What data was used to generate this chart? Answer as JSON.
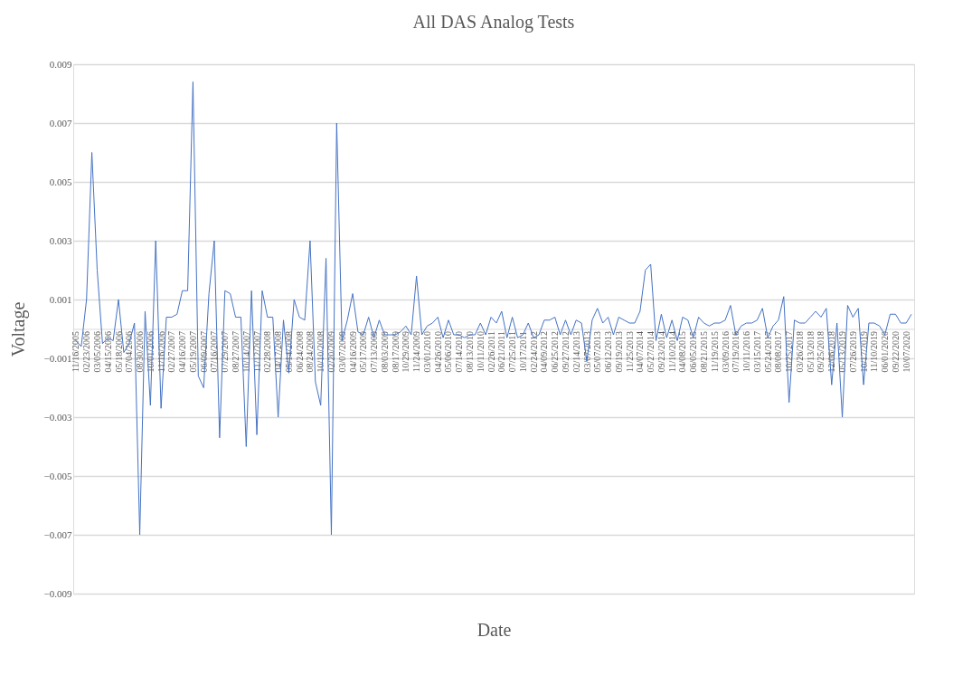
{
  "chart_data": {
    "type": "line",
    "title": "All DAS Analog Tests",
    "xlabel": "Date",
    "ylabel": "Voltage",
    "categories": [
      "11/16/2005",
      null,
      "02/23/2006",
      null,
      "03/05/2006",
      null,
      "04/15/2006",
      null,
      "05/18/2006",
      null,
      "07/04/2006",
      null,
      "08/30/2006",
      null,
      "10/01/2006",
      null,
      "11/16/2006",
      null,
      "02/27/2007",
      null,
      "04/16/2007",
      null,
      "05/19/2007",
      null,
      "06/09/2007",
      null,
      "07/16/2007",
      null,
      "07/29/2007",
      null,
      "08/27/2007",
      null,
      "10/14/2007",
      null,
      "11/12/2007",
      null,
      "02/28/2008",
      null,
      "04/17/2008",
      null,
      "05/14/2008",
      null,
      "06/24/2008",
      null,
      "08/24/2008",
      null,
      "10/10/2008",
      null,
      "02/20/2009",
      null,
      "03/07/2009",
      null,
      "04/16/2009",
      null,
      "05/17/2009",
      null,
      "07/13/2009",
      null,
      "08/03/2009",
      null,
      "08/17/2009",
      null,
      "10/29/2009",
      null,
      "11/24/2009",
      null,
      "03/01/2010",
      null,
      "04/26/2010",
      null,
      "05/06/2010",
      null,
      "07/14/2010",
      null,
      "08/13/2010",
      null,
      "10/11/2010",
      null,
      "02/26/2011",
      null,
      "06/21/2011",
      null,
      "07/25/2011",
      null,
      "10/17/2011",
      null,
      "02/24/2012",
      null,
      "04/09/2012",
      null,
      "06/25/2012",
      null,
      "09/27/2012",
      null,
      "02/14/2013",
      null,
      "03/07/2013",
      null,
      "05/07/2013",
      null,
      "06/12/2013",
      null,
      "09/19/2013",
      null,
      "11/25/2013",
      null,
      "04/07/2014",
      null,
      "05/27/2014",
      null,
      "09/23/2014",
      null,
      "11/10/2014",
      null,
      "04/08/2015",
      null,
      "06/05/2015",
      null,
      "08/21/2015",
      null,
      "11/19/2015",
      null,
      "03/09/2016",
      null,
      "07/19/2016",
      null,
      "10/11/2016",
      null,
      "03/15/2017",
      null,
      "05/24/2017",
      null,
      "08/08/2017",
      null,
      "10/25/2017",
      null,
      "03/26/2018",
      null,
      "05/13/2018",
      null,
      "09/25/2018",
      null,
      "12/06/2018",
      null,
      "05/13/2019",
      null,
      "07/26/2019",
      null,
      "10/17/2019",
      null,
      "11/10/2019",
      null,
      "06/01/2020",
      null,
      "09/22/2020",
      null,
      "10/07/2020",
      null
    ],
    "series": [
      {
        "color": "#4472c4",
        "values": [
          -0.0004,
          -0.0006,
          0.001,
          0.006,
          0.002,
          -0.0005,
          -0.0003,
          -0.0004,
          0.001,
          -0.0008,
          -0.0005,
          0.0002,
          -0.007,
          0.0006,
          -0.0026,
          0.003,
          -0.0027,
          0.0004,
          0.0004,
          0.0005,
          0.0013,
          0.0013,
          0.0084,
          -0.0016,
          -0.002,
          0.0012,
          0.003,
          -0.0037,
          0.0013,
          0.0012,
          0.0004,
          0.0004,
          -0.004,
          0.0013,
          -0.0036,
          0.0013,
          0.0004,
          0.0004,
          -0.003,
          0.0003,
          -0.0015,
          0.001,
          0.0004,
          0.0003,
          0.003,
          -0.0018,
          -0.0026,
          0.0024,
          -0.007,
          0.007,
          -0.0004,
          0.0003,
          0.0012,
          -0.0001,
          -0.0002,
          0.0004,
          -0.0003,
          0.0003,
          -0.0002,
          -0.0002,
          -0.0002,
          -0.0001,
          0.0001,
          -0.0002,
          0.0018,
          -0.0002,
          0.0001,
          0.0002,
          0.0004,
          -0.0003,
          0.0003,
          -0.0002,
          -0.0002,
          -0.0003,
          -0.0002,
          -0.0002,
          0.0002,
          -0.0002,
          0.0004,
          0.0002,
          0.0006,
          -0.0003,
          0.0004,
          -0.0003,
          -0.0002,
          0.0002,
          -0.0003,
          -0.0002,
          0.0003,
          0.0003,
          0.0004,
          -0.0002,
          0.0003,
          -0.0002,
          0.0003,
          0.0002,
          -0.0011,
          0.0003,
          0.0007,
          0.0002,
          0.0004,
          -0.0002,
          0.0004,
          0.0003,
          0.0002,
          0.0002,
          0.0006,
          0.002,
          0.0022,
          -0.0004,
          0.0005,
          -0.0003,
          0.0003,
          -0.0004,
          0.0004,
          0.0003,
          -0.0003,
          0.0004,
          0.0002,
          0.0001,
          0.0002,
          0.0002,
          0.0003,
          0.0008,
          -0.0002,
          0.0001,
          0.0002,
          0.0002,
          0.0003,
          0.0007,
          -0.0003,
          0.0001,
          0.0003,
          0.0011,
          -0.0025,
          0.0003,
          0.0002,
          0.0002,
          0.0004,
          0.0006,
          0.0004,
          0.0007,
          -0.0019,
          0.0002,
          -0.003,
          0.0008,
          0.0004,
          0.0007,
          -0.0019,
          0.0002,
          0.0002,
          0.0001,
          -0.0002,
          0.0005,
          0.0005,
          0.0002,
          0.0002,
          0.0005
        ]
      }
    ],
    "ylim": [
      -0.009,
      0.009
    ],
    "yticks": [
      -0.009,
      -0.007,
      -0.005,
      -0.003,
      -0.001,
      0.001,
      0.003,
      0.005,
      0.007,
      0.009
    ],
    "grid": "y",
    "marker": "none",
    "line_style": "solid"
  }
}
